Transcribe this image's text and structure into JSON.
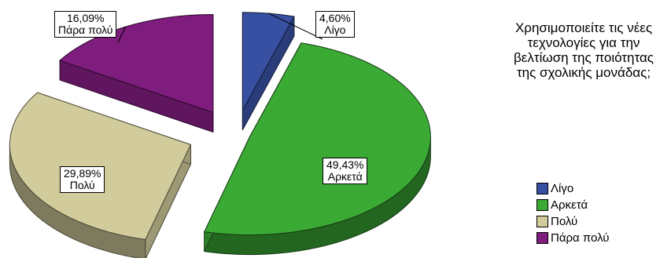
{
  "chart_data": {
    "type": "pie",
    "title": "",
    "legend_title": "Χρησιμοποιείτε τις νέες τεχνολογίες για την βελτίωση της ποιότητας της σχολικής μονάδας;",
    "legend_position": "right",
    "exploded": true,
    "three_d": true,
    "slices": [
      {
        "label": "Λίγο",
        "value": 4.6,
        "value_label": "4,60%",
        "color": "#3850a2"
      },
      {
        "label": "Αρκετά",
        "value": 49.43,
        "value_label": "49,43%",
        "color": "#3aaa35"
      },
      {
        "label": "Πολύ",
        "value": 29.89,
        "value_label": "29,89%",
        "color": "#d2cc9c"
      },
      {
        "label": "Πάρα πολύ",
        "value": 16.09,
        "value_label": "16,09%",
        "color": "#7e1d7d"
      }
    ]
  }
}
